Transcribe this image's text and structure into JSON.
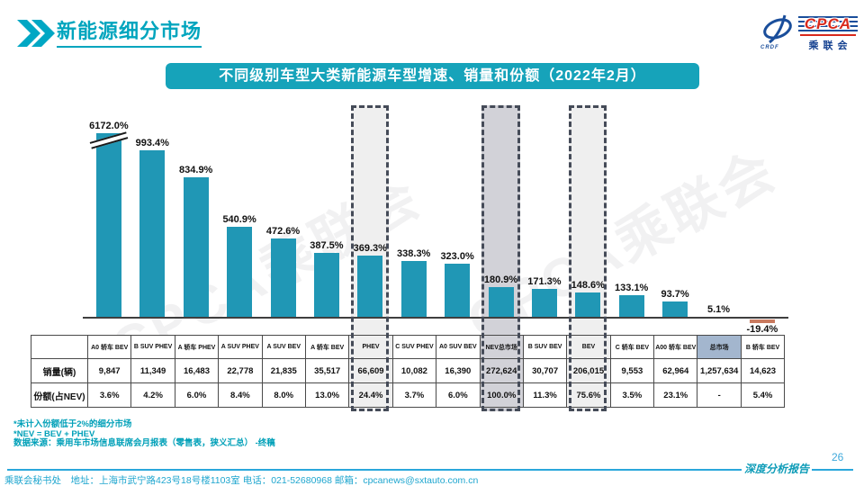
{
  "page": {
    "header": {
      "title": "新能源细分市场"
    },
    "logo": {
      "cpca": "CPCA",
      "sub": "乘联会",
      "small": "CRDF"
    },
    "banner": {
      "title": "不同级别车型大类新能源车型增速、销量和份额（2022年2月）"
    },
    "watermark": "CPCA乘联会",
    "notes": [
      "*未计入份额低于2%的细分市场",
      "*NEV = BEV + PHEV",
      "数据来源：乘用车市场信息联席会月报表（零售表，狭义汇总） -终稿"
    ],
    "footer": {
      "contact": "乘联会秘书处　地址：上海市武宁路423号18号楼1103室 电话：021-52680968  邮箱：cpcanews@sxtauto.com.cn",
      "report_label": "深度分析报告",
      "page_number": "26"
    }
  },
  "chart_data": {
    "type": "bar",
    "title": "不同级别车型大类新能源车型增速、销量和份额（2022年2月）",
    "categories": [
      "A0 轿车 BEV",
      "B SUV PHEV",
      "A 轿车 PHEV",
      "A SUV PHEV",
      "A SUV BEV",
      "A 轿车 BEV",
      "PHEV",
      "C SUV PHEV",
      "A0 SUV BEV",
      "NEV总市场",
      "B SUV BEV",
      "BEV",
      "C 轿车 BEV",
      "A00 轿车 BEV",
      "总市场",
      "B 轿车 BEV"
    ],
    "growth_pct": [
      6172.0,
      993.4,
      834.9,
      540.9,
      472.6,
      387.5,
      369.3,
      338.3,
      323.0,
      180.9,
      171.3,
      148.6,
      133.1,
      93.7,
      5.1,
      -19.4
    ],
    "growth_labels": [
      "6172.0%",
      "993.4%",
      "834.9%",
      "540.9%",
      "472.6%",
      "387.5%",
      "369.3%",
      "338.3%",
      "323.0%",
      "180.9%",
      "171.3%",
      "148.6%",
      "133.1%",
      "93.7%",
      "5.1%",
      "-19.4%"
    ],
    "axis_break_index": 0,
    "table": {
      "row_labels": [
        "销量(辆)",
        "份额(占NEV)"
      ],
      "sales": [
        "9,847",
        "11,349",
        "16,483",
        "22,778",
        "21,835",
        "35,517",
        "66,609",
        "10,082",
        "16,390",
        "272,624",
        "30,707",
        "206,015",
        "9,553",
        "62,964",
        "1,257,634",
        "14,623"
      ],
      "share": [
        "3.6%",
        "4.2%",
        "6.0%",
        "8.4%",
        "8.0%",
        "13.0%",
        "24.4%",
        "3.7%",
        "6.0%",
        "100.0%",
        "11.3%",
        "75.6%",
        "3.5%",
        "23.1%",
        "-",
        "5.4%"
      ]
    },
    "highlight_columns": {
      "light": [
        6,
        11
      ],
      "dark": [
        9
      ],
      "header_blue": [
        14
      ]
    },
    "legend": "none",
    "grid": "off",
    "colors": {
      "bar": "#2097B5",
      "negative_bar": "#C97A5F",
      "highlight_light": "#EFEFEF",
      "highlight_dark": "#D2D2D8",
      "header_blue_cell": "#A3B6CE",
      "accent_teal": "#16A3BA"
    }
  }
}
